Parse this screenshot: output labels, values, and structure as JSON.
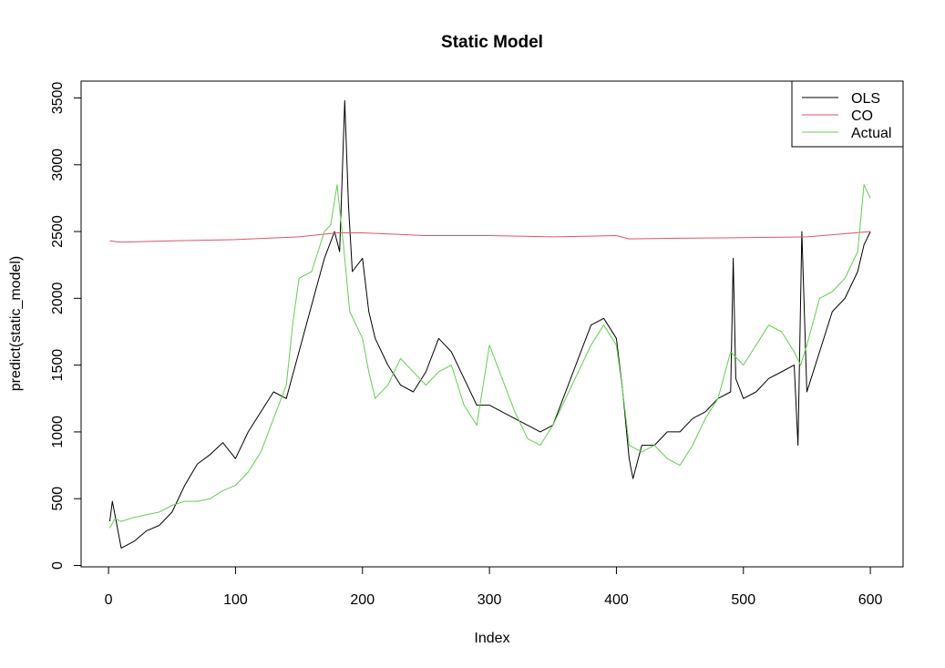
{
  "chart_data": {
    "type": "line",
    "title": "Static Model",
    "xlabel": "Index",
    "ylabel": "predict(static_model)",
    "xlim": [
      0,
      600
    ],
    "ylim": [
      0,
      3500
    ],
    "x_ticks": [
      0,
      100,
      200,
      300,
      400,
      500,
      600
    ],
    "y_ticks": [
      0,
      500,
      1000,
      1500,
      2000,
      2500,
      3000,
      3500
    ],
    "grid": false,
    "legend_position": "top-right",
    "colors": {
      "OLS": "#000000",
      "CO": "#DF536B",
      "Actual": "#61D04F"
    },
    "series": [
      {
        "name": "OLS",
        "points": [
          [
            1,
            330
          ],
          [
            3,
            480
          ],
          [
            6,
            330
          ],
          [
            10,
            130
          ],
          [
            20,
            180
          ],
          [
            30,
            260
          ],
          [
            40,
            300
          ],
          [
            50,
            400
          ],
          [
            60,
            600
          ],
          [
            70,
            760
          ],
          [
            80,
            830
          ],
          [
            90,
            920
          ],
          [
            100,
            800
          ],
          [
            110,
            1000
          ],
          [
            120,
            1150
          ],
          [
            130,
            1300
          ],
          [
            140,
            1250
          ],
          [
            150,
            1600
          ],
          [
            160,
            1950
          ],
          [
            170,
            2300
          ],
          [
            178,
            2500
          ],
          [
            182,
            2350
          ],
          [
            186,
            3480
          ],
          [
            189,
            2700
          ],
          [
            192,
            2200
          ],
          [
            200,
            2300
          ],
          [
            205,
            1900
          ],
          [
            210,
            1700
          ],
          [
            220,
            1500
          ],
          [
            230,
            1350
          ],
          [
            240,
            1300
          ],
          [
            250,
            1450
          ],
          [
            260,
            1700
          ],
          [
            265,
            1650
          ],
          [
            270,
            1600
          ],
          [
            280,
            1400
          ],
          [
            290,
            1200
          ],
          [
            300,
            1200
          ],
          [
            310,
            1150
          ],
          [
            320,
            1100
          ],
          [
            330,
            1050
          ],
          [
            340,
            1000
          ],
          [
            350,
            1050
          ],
          [
            360,
            1300
          ],
          [
            370,
            1550
          ],
          [
            380,
            1800
          ],
          [
            390,
            1850
          ],
          [
            400,
            1700
          ],
          [
            405,
            1300
          ],
          [
            410,
            800
          ],
          [
            413,
            650
          ],
          [
            420,
            900
          ],
          [
            430,
            900
          ],
          [
            440,
            1000
          ],
          [
            450,
            1000
          ],
          [
            460,
            1100
          ],
          [
            470,
            1150
          ],
          [
            480,
            1250
          ],
          [
            490,
            1300
          ],
          [
            492,
            2300
          ],
          [
            494,
            1400
          ],
          [
            500,
            1250
          ],
          [
            510,
            1300
          ],
          [
            520,
            1400
          ],
          [
            530,
            1450
          ],
          [
            540,
            1500
          ],
          [
            543,
            900
          ],
          [
            546,
            2500
          ],
          [
            550,
            1300
          ],
          [
            560,
            1600
          ],
          [
            570,
            1900
          ],
          [
            580,
            2000
          ],
          [
            590,
            2200
          ],
          [
            595,
            2400
          ],
          [
            600,
            2500
          ]
        ]
      },
      {
        "name": "CO",
        "points": [
          [
            1,
            2430
          ],
          [
            10,
            2420
          ],
          [
            50,
            2430
          ],
          [
            100,
            2440
          ],
          [
            150,
            2460
          ],
          [
            180,
            2490
          ],
          [
            200,
            2490
          ],
          [
            250,
            2470
          ],
          [
            300,
            2470
          ],
          [
            350,
            2460
          ],
          [
            400,
            2470
          ],
          [
            410,
            2445
          ],
          [
            450,
            2450
          ],
          [
            500,
            2455
          ],
          [
            550,
            2460
          ],
          [
            600,
            2500
          ]
        ]
      },
      {
        "name": "Actual",
        "points": [
          [
            1,
            280
          ],
          [
            5,
            350
          ],
          [
            10,
            330
          ],
          [
            20,
            360
          ],
          [
            30,
            380
          ],
          [
            40,
            400
          ],
          [
            50,
            450
          ],
          [
            60,
            480
          ],
          [
            70,
            480
          ],
          [
            80,
            500
          ],
          [
            90,
            560
          ],
          [
            100,
            600
          ],
          [
            110,
            700
          ],
          [
            120,
            850
          ],
          [
            130,
            1100
          ],
          [
            140,
            1350
          ],
          [
            145,
            1800
          ],
          [
            150,
            2150
          ],
          [
            160,
            2200
          ],
          [
            170,
            2500
          ],
          [
            175,
            2550
          ],
          [
            180,
            2850
          ],
          [
            185,
            2400
          ],
          [
            190,
            1900
          ],
          [
            200,
            1700
          ],
          [
            205,
            1450
          ],
          [
            210,
            1250
          ],
          [
            220,
            1350
          ],
          [
            230,
            1550
          ],
          [
            240,
            1450
          ],
          [
            250,
            1350
          ],
          [
            260,
            1450
          ],
          [
            270,
            1500
          ],
          [
            280,
            1200
          ],
          [
            290,
            1050
          ],
          [
            300,
            1650
          ],
          [
            310,
            1400
          ],
          [
            320,
            1150
          ],
          [
            330,
            950
          ],
          [
            340,
            900
          ],
          [
            350,
            1050
          ],
          [
            360,
            1250
          ],
          [
            370,
            1450
          ],
          [
            380,
            1650
          ],
          [
            390,
            1800
          ],
          [
            400,
            1650
          ],
          [
            405,
            1300
          ],
          [
            410,
            900
          ],
          [
            420,
            850
          ],
          [
            430,
            900
          ],
          [
            440,
            800
          ],
          [
            450,
            750
          ],
          [
            460,
            900
          ],
          [
            470,
            1100
          ],
          [
            480,
            1250
          ],
          [
            490,
            1600
          ],
          [
            500,
            1500
          ],
          [
            510,
            1650
          ],
          [
            520,
            1800
          ],
          [
            530,
            1750
          ],
          [
            540,
            1600
          ],
          [
            545,
            1500
          ],
          [
            550,
            1650
          ],
          [
            560,
            2000
          ],
          [
            570,
            2050
          ],
          [
            580,
            2150
          ],
          [
            590,
            2350
          ],
          [
            595,
            2850
          ],
          [
            600,
            2750
          ]
        ]
      }
    ]
  }
}
